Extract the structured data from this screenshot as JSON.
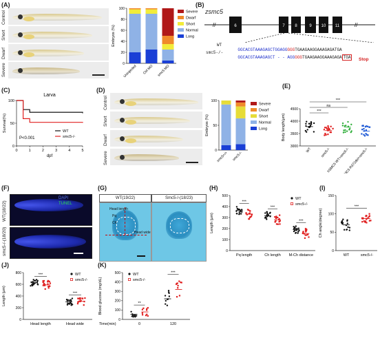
{
  "panels": {
    "A": {
      "label": "(A)",
      "rows": [
        "Control",
        "Short",
        "Dwarf",
        "Severe"
      ]
    },
    "B": {
      "label": "(B)",
      "gene": "zsmc5",
      "exons": [
        "6",
        "7",
        "8",
        "9",
        "10",
        "11"
      ],
      "wt_prefix": "WT",
      "wt_seq_blue": "GGCACGTAAAGAGCTGGAGG",
      "wt_seq_red": "GGG",
      "wt_seq_rest": "TGAAGAAGGAAAGAGATGA",
      "mut_prefix": "smc5-/-",
      "mut_seq_blue": "GGCACGTAAAGAGCT - - AGG",
      "mut_seq_red": "GGG",
      "mut_seq_rest": "TGAAGAAGGAAAGAGA",
      "mut_stop_codon": "TGA",
      "stop": "Stop"
    },
    "C": {
      "label": "(C)"
    },
    "D": {
      "label": "(D)",
      "rows": [
        "Control",
        "Short",
        "Dwarf",
        "Severe"
      ]
    },
    "E": {
      "label": "(E)"
    },
    "F": {
      "label": "(F)",
      "rows": [
        "WT(18/22)",
        "smc5-/-(18/20)"
      ],
      "dapi": "DAPI",
      "tunel": "TUNEL"
    },
    "G": {
      "label": "(G)",
      "left_title": "WT(19/22)",
      "right_title": "Smc5-/-(18/23)",
      "annot_head_length": "Head length",
      "annot_pq": "Pq",
      "annot_ch": "Ch",
      "annot_head_wide": "Head wide"
    },
    "H": {
      "label": "(H)"
    },
    "I": {
      "label": "(I)"
    },
    "J": {
      "label": "(J)"
    },
    "K": {
      "label": "(K)"
    }
  },
  "chart_data": [
    {
      "id": "A",
      "type": "bar",
      "stacked": true,
      "categories": [
        "Uninjected",
        "Ctrl MO",
        "smc5 MO"
      ],
      "ylabel": "Embryos (%)",
      "ylim": [
        0,
        100
      ],
      "yticks": [
        0,
        20,
        40,
        60,
        80,
        100
      ],
      "legend_position": "right",
      "series": [
        {
          "name": "Long",
          "color": "#1a3fd6",
          "values": [
            20,
            25,
            5
          ]
        },
        {
          "name": "Normal",
          "color": "#8fb2e6",
          "values": [
            70,
            65,
            20
          ]
        },
        {
          "name": "Short",
          "color": "#f2ec3a",
          "values": [
            8,
            8,
            10
          ]
        },
        {
          "name": "Dwarf",
          "color": "#f08a2a",
          "values": [
            2,
            2,
            15
          ]
        },
        {
          "name": "Severe",
          "color": "#b01818",
          "values": [
            0,
            0,
            50
          ]
        }
      ]
    },
    {
      "id": "C",
      "type": "line",
      "title": "Larva",
      "xlabel": "dpf",
      "ylabel": "Survival(%)",
      "xlim": [
        0,
        5
      ],
      "ylim": [
        0,
        100
      ],
      "xticks": [
        0,
        1,
        2,
        3,
        4,
        5
      ],
      "yticks": [
        0,
        50,
        100
      ],
      "annotation": "P<0.001",
      "series": [
        {
          "name": "WT",
          "color": "#111111",
          "x": [
            0,
            0.5,
            1,
            5
          ],
          "y": [
            100,
            80,
            74,
            72
          ]
        },
        {
          "name": "smc5-/-",
          "color": "#e02020",
          "x": [
            0,
            0.5,
            1,
            5
          ],
          "y": [
            100,
            60,
            52,
            51
          ]
        }
      ]
    },
    {
      "id": "D",
      "type": "bar",
      "stacked": true,
      "categories": [
        "smc5+/+",
        "smc5-/-"
      ],
      "ylabel": "Embryos (%)",
      "ylim": [
        0,
        100
      ],
      "yticks": [
        0,
        50,
        100
      ],
      "legend_position": "right",
      "series": [
        {
          "name": "Long",
          "color": "#1a3fd6",
          "values": [
            10,
            12
          ]
        },
        {
          "name": "Normal",
          "color": "#8fb2e6",
          "values": [
            82,
            52
          ]
        },
        {
          "name": "Short",
          "color": "#e6dc38",
          "values": [
            8,
            24
          ]
        },
        {
          "name": "Dwarf",
          "color": "#f08a2a",
          "values": [
            0,
            8
          ]
        },
        {
          "name": "Severe",
          "color": "#b01818",
          "values": [
            0,
            4
          ]
        }
      ]
    },
    {
      "id": "E",
      "type": "scatter",
      "ylabel": "Body length(μm)",
      "ylim": [
        3000,
        4500
      ],
      "yticks": [
        3000,
        3500,
        4000,
        4500
      ],
      "categories": [
        "WT",
        "smc5-/-",
        "hSMC5 WT+smc5-/-",
        "hSMC5 R372del+smc5-/-"
      ],
      "colors": [
        "#111111",
        "#e02020",
        "#2fae3a",
        "#1f5ad6"
      ],
      "means": [
        3780,
        3620,
        3760,
        3600
      ],
      "significance": [
        "***",
        "ns",
        "***"
      ]
    },
    {
      "id": "H",
      "type": "scatter",
      "ylabel": "Length (μm)",
      "ylim": [
        0,
        500
      ],
      "yticks": [
        0,
        100,
        200,
        300,
        400,
        500
      ],
      "categories": [
        "Pq length",
        "Ch length",
        "M-Ch distance"
      ],
      "series": [
        {
          "name": "WT",
          "color": "#111111",
          "means": [
            365,
            315,
            190
          ]
        },
        {
          "name": "smc5-/-",
          "color": "#e02020",
          "means": [
            330,
            280,
            155
          ]
        }
      ],
      "significance": [
        "***",
        "***",
        "***"
      ]
    },
    {
      "id": "I",
      "type": "scatter",
      "ylabel": "Ch angle(degree)",
      "ylim": [
        0,
        150
      ],
      "yticks": [
        0,
        50,
        100,
        150
      ],
      "categories": [
        "WT",
        "smc5-/-"
      ],
      "series": [
        {
          "name": "WT",
          "color": "#111111",
          "mean": 70
        },
        {
          "name": "smc5-/-",
          "color": "#e02020",
          "mean": 87
        }
      ],
      "significance": [
        "***"
      ]
    },
    {
      "id": "J",
      "type": "scatter",
      "ylabel": "Length (μm)",
      "ylim": [
        0,
        800
      ],
      "yticks": [
        0,
        200,
        400,
        600,
        800
      ],
      "categories": [
        "Head length",
        "Head wide"
      ],
      "series": [
        {
          "name": "WT",
          "color": "#111111",
          "means": [
            630,
            300
          ]
        },
        {
          "name": "smc5-/-",
          "color": "#e02020",
          "means": [
            590,
            310
          ]
        }
      ],
      "significance": [
        "***",
        "***"
      ]
    },
    {
      "id": "K",
      "type": "scatter",
      "ylabel": "Blood glucose (mg/dL)",
      "xlabel": "Time(min)",
      "ylim": [
        0,
        500
      ],
      "yticks": [
        0,
        100,
        200,
        300,
        400,
        500
      ],
      "categories": [
        "0",
        "120"
      ],
      "series": [
        {
          "name": "WT",
          "color": "#111111",
          "means": [
            55,
            220
          ]
        },
        {
          "name": "smc5-/-",
          "color": "#e02020",
          "means": [
            80,
            320
          ]
        }
      ],
      "significance": [
        "**",
        "***"
      ]
    }
  ]
}
